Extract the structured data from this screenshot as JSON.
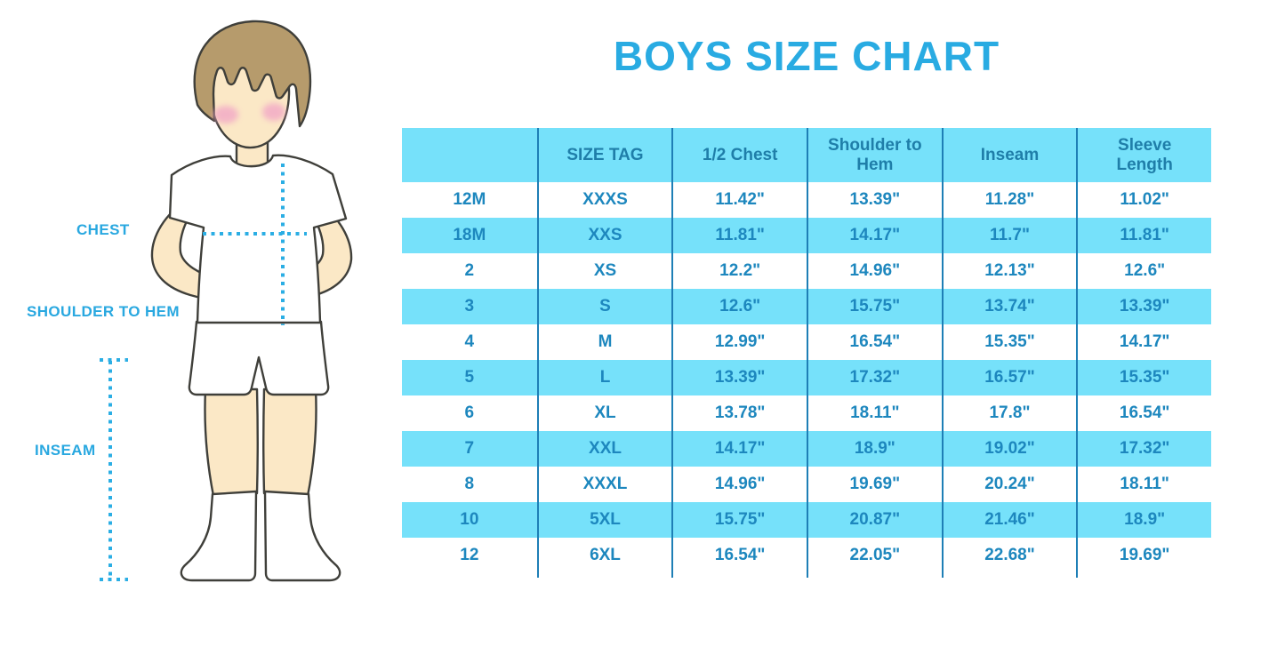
{
  "title": "BOYS SIZE CHART",
  "colors": {
    "title_blue": "#29ABE2",
    "label_blue": "#29A8E0",
    "header_text": "#1F7EA9",
    "body_text": "#1D87BE",
    "band_cyan": "#76E1FA",
    "divider_blue": "#1E7FB6",
    "dotted_line": "#2BAEE4"
  },
  "figure": {
    "labels": {
      "chest": "CHEST",
      "shoulder_to_hem": "SHOULDER TO HEM",
      "inseam": "INSEAM"
    }
  },
  "chart_data": {
    "type": "table",
    "title": "BOYS SIZE CHART",
    "columns": [
      "",
      "SIZE TAG",
      "1/2 Chest",
      "Shoulder to Hem",
      "Inseam",
      "Sleeve Length"
    ],
    "rows": [
      [
        "12M",
        "XXXS",
        "11.42\"",
        "13.39\"",
        "11.28\"",
        "11.02\""
      ],
      [
        "18M",
        "XXS",
        "11.81\"",
        "14.17\"",
        "11.7\"",
        "11.81\""
      ],
      [
        "2",
        "XS",
        "12.2\"",
        "14.96\"",
        "12.13\"",
        "12.6\""
      ],
      [
        "3",
        "S",
        "12.6\"",
        "15.75\"",
        "13.74\"",
        "13.39\""
      ],
      [
        "4",
        "M",
        "12.99\"",
        "16.54\"",
        "15.35\"",
        "14.17\""
      ],
      [
        "5",
        "L",
        "13.39\"",
        "17.32\"",
        "16.57\"",
        "15.35\""
      ],
      [
        "6",
        "XL",
        "13.78\"",
        "18.11\"",
        "17.8\"",
        "16.54\""
      ],
      [
        "7",
        "XXL",
        "14.17\"",
        "18.9\"",
        "19.02\"",
        "17.32\""
      ],
      [
        "8",
        "XXXL",
        "14.96\"",
        "19.69\"",
        "20.24\"",
        "18.11\""
      ],
      [
        "10",
        "5XL",
        "15.75\"",
        "20.87\"",
        "21.46\"",
        "18.9\""
      ],
      [
        "12",
        "6XL",
        "16.54\"",
        "22.05\"",
        "22.68\"",
        "19.69\""
      ]
    ],
    "banding": "alternating rows, even rows white, odd rows cyan, header cyan",
    "legend_position": "none",
    "grid": "vertical dividers only"
  }
}
